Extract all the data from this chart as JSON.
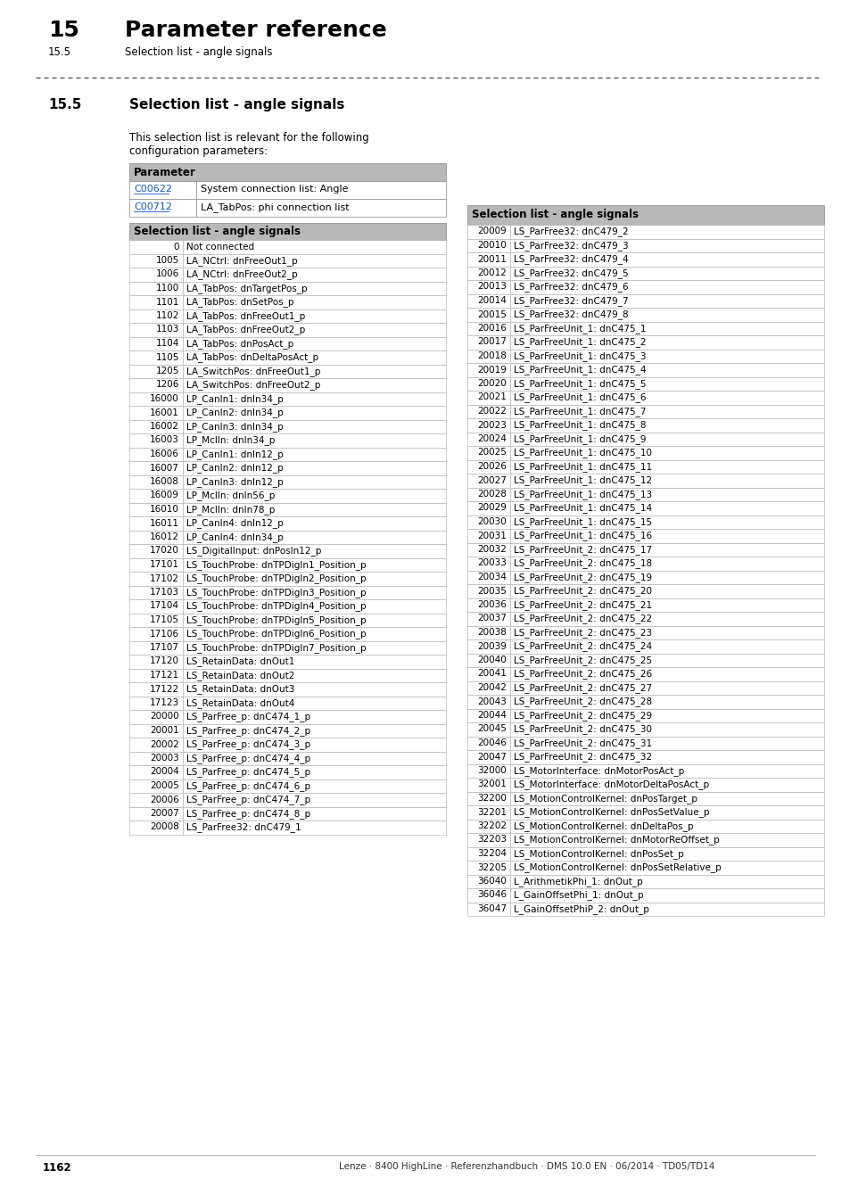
{
  "page_header_number": "15",
  "page_header_title": "Parameter reference",
  "page_header_sub": "15.5",
  "page_header_sub_title": "Selection list - angle signals",
  "section_number": "15.5",
  "section_title": "Selection list - angle signals",
  "intro_line1": "This selection list is relevant for the following",
  "intro_line2": "configuration parameters:",
  "param_table_header": "Parameter",
  "param_table_rows": [
    [
      "C00622",
      "System connection list: Angle"
    ],
    [
      "C00712",
      "LA_TabPos: phi connection list"
    ]
  ],
  "left_table_header": "Selection list - angle signals",
  "left_table_rows": [
    [
      "0",
      "Not connected"
    ],
    [
      "1005",
      "LA_NCtrl: dnFreeOut1_p"
    ],
    [
      "1006",
      "LA_NCtrl: dnFreeOut2_p"
    ],
    [
      "1100",
      "LA_TabPos: dnTargetPos_p"
    ],
    [
      "1101",
      "LA_TabPos: dnSetPos_p"
    ],
    [
      "1102",
      "LA_TabPos: dnFreeOut1_p"
    ],
    [
      "1103",
      "LA_TabPos: dnFreeOut2_p"
    ],
    [
      "1104",
      "LA_TabPos: dnPosAct_p"
    ],
    [
      "1105",
      "LA_TabPos: dnDeltaPosAct_p"
    ],
    [
      "1205",
      "LA_SwitchPos: dnFreeOut1_p"
    ],
    [
      "1206",
      "LA_SwitchPos: dnFreeOut2_p"
    ],
    [
      "16000",
      "LP_CanIn1: dnIn34_p"
    ],
    [
      "16001",
      "LP_CanIn2: dnIn34_p"
    ],
    [
      "16002",
      "LP_CanIn3: dnIn34_p"
    ],
    [
      "16003",
      "LP_McIln: dnIn34_p"
    ],
    [
      "16006",
      "LP_CanIn1: dnIn12_p"
    ],
    [
      "16007",
      "LP_CanIn2: dnIn12_p"
    ],
    [
      "16008",
      "LP_CanIn3: dnIn12_p"
    ],
    [
      "16009",
      "LP_McIln: dnIn56_p"
    ],
    [
      "16010",
      "LP_McIln: dnIn78_p"
    ],
    [
      "16011",
      "LP_CanIn4: dnIn12_p"
    ],
    [
      "16012",
      "LP_CanIn4: dnIn34_p"
    ],
    [
      "17020",
      "LS_DigitalInput: dnPosIn12_p"
    ],
    [
      "17101",
      "LS_TouchProbe: dnTPDigIn1_Position_p"
    ],
    [
      "17102",
      "LS_TouchProbe: dnTPDigIn2_Position_p"
    ],
    [
      "17103",
      "LS_TouchProbe: dnTPDigIn3_Position_p"
    ],
    [
      "17104",
      "LS_TouchProbe: dnTPDigIn4_Position_p"
    ],
    [
      "17105",
      "LS_TouchProbe: dnTPDigIn5_Position_p"
    ],
    [
      "17106",
      "LS_TouchProbe: dnTPDigIn6_Position_p"
    ],
    [
      "17107",
      "LS_TouchProbe: dnTPDigIn7_Position_p"
    ],
    [
      "17120",
      "LS_RetainData: dnOut1"
    ],
    [
      "17121",
      "LS_RetainData: dnOut2"
    ],
    [
      "17122",
      "LS_RetainData: dnOut3"
    ],
    [
      "17123",
      "LS_RetainData: dnOut4"
    ],
    [
      "20000",
      "LS_ParFree_p: dnC474_1_p"
    ],
    [
      "20001",
      "LS_ParFree_p: dnC474_2_p"
    ],
    [
      "20002",
      "LS_ParFree_p: dnC474_3_p"
    ],
    [
      "20003",
      "LS_ParFree_p: dnC474_4_p"
    ],
    [
      "20004",
      "LS_ParFree_p: dnC474_5_p"
    ],
    [
      "20005",
      "LS_ParFree_p: dnC474_6_p"
    ],
    [
      "20006",
      "LS_ParFree_p: dnC474_7_p"
    ],
    [
      "20007",
      "LS_ParFree_p: dnC474_8_p"
    ],
    [
      "20008",
      "LS_ParFree32: dnC479_1"
    ]
  ],
  "right_table_header": "Selection list - angle signals",
  "right_table_rows": [
    [
      "20009",
      "LS_ParFree32: dnC479_2"
    ],
    [
      "20010",
      "LS_ParFree32: dnC479_3"
    ],
    [
      "20011",
      "LS_ParFree32: dnC479_4"
    ],
    [
      "20012",
      "LS_ParFree32: dnC479_5"
    ],
    [
      "20013",
      "LS_ParFree32: dnC479_6"
    ],
    [
      "20014",
      "LS_ParFree32: dnC479_7"
    ],
    [
      "20015",
      "LS_ParFree32: dnC479_8"
    ],
    [
      "20016",
      "LS_ParFreeUnit_1: dnC475_1"
    ],
    [
      "20017",
      "LS_ParFreeUnit_1: dnC475_2"
    ],
    [
      "20018",
      "LS_ParFreeUnit_1: dnC475_3"
    ],
    [
      "20019",
      "LS_ParFreeUnit_1: dnC475_4"
    ],
    [
      "20020",
      "LS_ParFreeUnit_1: dnC475_5"
    ],
    [
      "20021",
      "LS_ParFreeUnit_1: dnC475_6"
    ],
    [
      "20022",
      "LS_ParFreeUnit_1: dnC475_7"
    ],
    [
      "20023",
      "LS_ParFreeUnit_1: dnC475_8"
    ],
    [
      "20024",
      "LS_ParFreeUnit_1: dnC475_9"
    ],
    [
      "20025",
      "LS_ParFreeUnit_1: dnC475_10"
    ],
    [
      "20026",
      "LS_ParFreeUnit_1: dnC475_11"
    ],
    [
      "20027",
      "LS_ParFreeUnit_1: dnC475_12"
    ],
    [
      "20028",
      "LS_ParFreeUnit_1: dnC475_13"
    ],
    [
      "20029",
      "LS_ParFreeUnit_1: dnC475_14"
    ],
    [
      "20030",
      "LS_ParFreeUnit_1: dnC475_15"
    ],
    [
      "20031",
      "LS_ParFreeUnit_1: dnC475_16"
    ],
    [
      "20032",
      "LS_ParFreeUnit_2: dnC475_17"
    ],
    [
      "20033",
      "LS_ParFreeUnit_2: dnC475_18"
    ],
    [
      "20034",
      "LS_ParFreeUnit_2: dnC475_19"
    ],
    [
      "20035",
      "LS_ParFreeUnit_2: dnC475_20"
    ],
    [
      "20036",
      "LS_ParFreeUnit_2: dnC475_21"
    ],
    [
      "20037",
      "LS_ParFreeUnit_2: dnC475_22"
    ],
    [
      "20038",
      "LS_ParFreeUnit_2: dnC475_23"
    ],
    [
      "20039",
      "LS_ParFreeUnit_2: dnC475_24"
    ],
    [
      "20040",
      "LS_ParFreeUnit_2: dnC475_25"
    ],
    [
      "20041",
      "LS_ParFreeUnit_2: dnC475_26"
    ],
    [
      "20042",
      "LS_ParFreeUnit_2: dnC475_27"
    ],
    [
      "20043",
      "LS_ParFreeUnit_2: dnC475_28"
    ],
    [
      "20044",
      "LS_ParFreeUnit_2: dnC475_29"
    ],
    [
      "20045",
      "LS_ParFreeUnit_2: dnC475_30"
    ],
    [
      "20046",
      "LS_ParFreeUnit_2: dnC475_31"
    ],
    [
      "20047",
      "LS_ParFreeUnit_2: dnC475_32"
    ],
    [
      "32000",
      "LS_MotorInterface: dnMotorPosAct_p"
    ],
    [
      "32001",
      "LS_MotorInterface: dnMotorDeltaPosAct_p"
    ],
    [
      "32200",
      "LS_MotionControlKernel: dnPosTarget_p"
    ],
    [
      "32201",
      "LS_MotionControlKernel: dnPosSetValue_p"
    ],
    [
      "32202",
      "LS_MotionControlKernel: dnDeltaPos_p"
    ],
    [
      "32203",
      "LS_MotionControlKernel: dnMotorReOffset_p"
    ],
    [
      "32204",
      "LS_MotionControlKernel: dnPosSet_p"
    ],
    [
      "32205",
      "LS_MotionControlKernel: dnPosSetRelative_p"
    ],
    [
      "36040",
      "L_ArithmetikPhi_1: dnOut_p"
    ],
    [
      "36046",
      "L_GainOffsetPhi_1: dnOut_p"
    ],
    [
      "36047",
      "L_GainOffsetPhiP_2: dnOut_p"
    ]
  ],
  "footer_page": "1162",
  "footer_text": "Lenze · 8400 HighLine · Referenzhandbuch · DMS 10.0 EN · 06/2014 · TD05/TD14",
  "bg_color": "#ffffff",
  "table_header_bg": "#b8b8b8",
  "link_color": "#1155cc",
  "text_color": "#000000"
}
